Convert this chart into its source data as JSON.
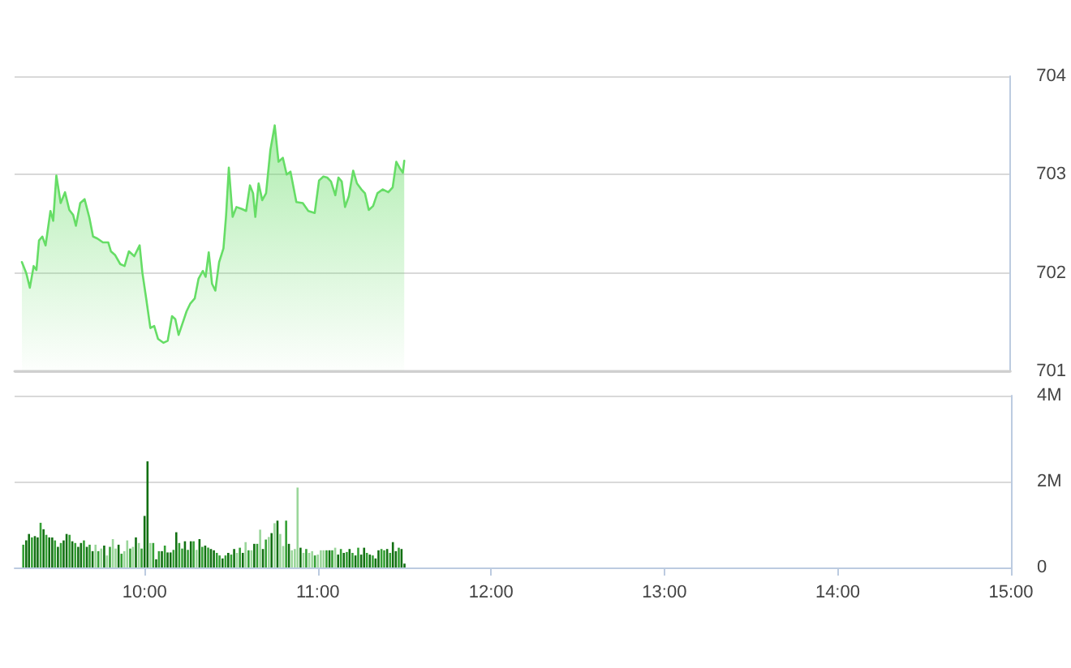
{
  "chart_data": [
    {
      "type": "area",
      "xlim": [
        9.25,
        15
      ],
      "ylim": [
        701,
        704
      ],
      "yticks": [
        701,
        702,
        703,
        704
      ],
      "grid": "y",
      "tick_labels": "y",
      "series": [
        {
          "color": "#66dd66",
          "x": [
            9.292,
            9.317,
            9.338,
            9.36,
            9.376,
            9.391,
            9.41,
            9.429,
            9.457,
            9.473,
            9.491,
            9.516,
            9.541,
            9.566,
            9.588,
            9.604,
            9.629,
            9.654,
            9.682,
            9.703,
            9.728,
            9.76,
            9.791,
            9.806,
            9.831,
            9.86,
            9.885,
            9.91,
            9.941,
            9.972,
            9.988,
            10.009,
            10.034,
            10.056,
            10.078,
            10.109,
            10.134,
            10.159,
            10.178,
            10.197,
            10.222,
            10.243,
            10.265,
            10.29,
            10.312,
            10.337,
            10.353,
            10.371,
            10.39,
            10.409,
            10.431,
            10.456,
            10.471,
            10.487,
            10.509,
            10.531,
            10.562,
            10.587,
            10.609,
            10.627,
            10.64,
            10.659,
            10.68,
            10.702,
            10.727,
            10.752,
            10.774,
            10.799,
            10.821,
            10.843,
            10.877,
            10.914,
            10.946,
            10.983,
            11.008,
            11.033,
            11.055,
            11.077,
            11.102,
            11.12,
            11.139,
            11.158,
            11.18,
            11.205,
            11.227,
            11.252,
            11.273,
            11.295,
            11.32,
            11.345,
            11.376,
            11.408,
            11.433,
            11.454,
            11.476,
            11.492,
            11.5
          ],
          "values": [
            702.11,
            702.0,
            701.85,
            702.07,
            702.03,
            702.33,
            702.37,
            702.28,
            702.63,
            702.53,
            702.99,
            702.71,
            702.82,
            702.64,
            702.59,
            702.48,
            702.71,
            702.75,
            702.56,
            702.37,
            702.35,
            702.31,
            702.31,
            702.22,
            702.18,
            702.09,
            702.07,
            702.22,
            702.17,
            702.28,
            702.0,
            701.75,
            701.44,
            701.46,
            701.33,
            701.29,
            701.31,
            701.56,
            701.53,
            701.37,
            701.5,
            701.61,
            701.69,
            701.74,
            701.94,
            702.02,
            701.96,
            702.21,
            701.89,
            701.82,
            702.11,
            702.25,
            702.58,
            703.07,
            702.57,
            702.67,
            702.65,
            702.63,
            702.89,
            702.81,
            702.57,
            702.91,
            702.74,
            702.81,
            703.25,
            703.5,
            703.13,
            703.17,
            703.0,
            703.03,
            702.72,
            702.71,
            702.63,
            702.61,
            702.94,
            702.98,
            702.97,
            702.93,
            702.79,
            702.97,
            702.93,
            702.67,
            702.78,
            703.04,
            702.91,
            702.85,
            702.81,
            702.64,
            702.68,
            702.81,
            702.85,
            702.82,
            702.87,
            703.13,
            703.06,
            703.02,
            703.14
          ]
        }
      ]
    },
    {
      "type": "bar",
      "xlim": [
        9.25,
        15
      ],
      "xticks": [
        {
          "value": 10,
          "label": "10:00"
        },
        {
          "value": 11,
          "label": "11:00"
        },
        {
          "value": 12,
          "label": "12:00"
        },
        {
          "value": 13,
          "label": "13:00"
        },
        {
          "value": 14,
          "label": "14:00"
        },
        {
          "value": 15,
          "label": "15:00"
        }
      ],
      "ylim": [
        0,
        4
      ],
      "yticks": [
        0,
        {
          "value": 2,
          "label": "2M"
        },
        {
          "value": 4,
          "label": "4M"
        }
      ],
      "grid": "y",
      "x": [
        9.3,
        9.317,
        9.333,
        9.35,
        9.367,
        9.383,
        9.4,
        9.417,
        9.433,
        9.45,
        9.467,
        9.483,
        9.5,
        9.517,
        9.533,
        9.55,
        9.567,
        9.583,
        9.6,
        9.617,
        9.633,
        9.65,
        9.667,
        9.683,
        9.7,
        9.717,
        9.733,
        9.75,
        9.767,
        9.783,
        9.8,
        9.817,
        9.833,
        9.85,
        9.867,
        9.883,
        9.9,
        9.917,
        9.933,
        9.95,
        9.967,
        9.983,
        10,
        10.017,
        10.033,
        10.05,
        10.067,
        10.083,
        10.1,
        10.117,
        10.133,
        10.15,
        10.167,
        10.183,
        10.2,
        10.217,
        10.233,
        10.25,
        10.267,
        10.283,
        10.3,
        10.317,
        10.333,
        10.35,
        10.367,
        10.383,
        10.4,
        10.417,
        10.433,
        10.45,
        10.467,
        10.483,
        10.5,
        10.517,
        10.533,
        10.55,
        10.567,
        10.583,
        10.6,
        10.617,
        10.633,
        10.65,
        10.667,
        10.683,
        10.7,
        10.717,
        10.733,
        10.75,
        10.767,
        10.783,
        10.8,
        10.817,
        10.833,
        10.85,
        10.867,
        10.883,
        10.9,
        10.917,
        10.933,
        10.95,
        10.967,
        10.983,
        11,
        11.017,
        11.033,
        11.05,
        11.067,
        11.083,
        11.1,
        11.117,
        11.133,
        11.15,
        11.167,
        11.183,
        11.2,
        11.217,
        11.233,
        11.25,
        11.267,
        11.283,
        11.3,
        11.317,
        11.333,
        11.35,
        11.367,
        11.383,
        11.4,
        11.417,
        11.433,
        11.45,
        11.467,
        11.483,
        11.5
      ],
      "values": [
        0.53,
        0.63,
        0.78,
        0.7,
        0.73,
        0.7,
        1.04,
        0.89,
        0.76,
        0.7,
        0.7,
        0.63,
        0.48,
        0.57,
        0.63,
        0.78,
        0.76,
        0.61,
        0.57,
        0.48,
        0.57,
        0.63,
        0.48,
        0.53,
        0.38,
        0.53,
        0.38,
        0.44,
        0.51,
        0.28,
        0.48,
        0.66,
        0.44,
        0.53,
        0.32,
        0.38,
        0.63,
        0.44,
        0.48,
        0.7,
        0.57,
        0.44,
        1.2,
        2.47,
        0.57,
        0.57,
        0.19,
        0.38,
        0.38,
        0.51,
        0.35,
        0.35,
        0.41,
        0.82,
        0.57,
        0.44,
        0.61,
        0.41,
        0.61,
        0.61,
        0.41,
        0.66,
        0.48,
        0.51,
        0.46,
        0.43,
        0.4,
        0.34,
        0.28,
        0.21,
        0.28,
        0.34,
        0.3,
        0.43,
        0.34,
        0.46,
        0.34,
        0.59,
        0.4,
        0.4,
        0.55,
        0.55,
        0.88,
        0.43,
        0.65,
        0.71,
        0.8,
        1.03,
        1.09,
        0.78,
        0.5,
        1.09,
        0.55,
        0.4,
        0.43,
        1.86,
        0.46,
        0.34,
        0.43,
        0.34,
        0.38,
        0.28,
        0.3,
        0.4,
        0.4,
        0.4,
        0.4,
        0.4,
        0.46,
        0.3,
        0.43,
        0.34,
        0.36,
        0.43,
        0.34,
        0.28,
        0.46,
        0.3,
        0.46,
        0.34,
        0.3,
        0.28,
        0.21,
        0.4,
        0.43,
        0.4,
        0.43,
        0.34,
        0.59,
        0.38,
        0.46,
        0.43,
        0.09
      ],
      "colors": [
        "#35a035",
        "#127012",
        "#127012",
        "#35a035",
        "#127012",
        "#127012",
        "#35a035",
        "#127012",
        "#35a035",
        "#127012",
        "#127012",
        "#35a035",
        "#127012",
        "#35a035",
        "#127012",
        "#127012",
        "#35a035",
        "#127012",
        "#35a035",
        "#127012",
        "#127012",
        "#35a035",
        "#127012",
        "#35a035",
        "#127012",
        "#9ad69a",
        "#35a035",
        "#9ad69a",
        "#127012",
        "#9ad69a",
        "#35a035",
        "#9ad69a",
        "#9ad69a",
        "#127012",
        "#35a035",
        "#9ad69a",
        "#9ad69a",
        "#35a035",
        "#9ad69a",
        "#127012",
        "#9ad69a",
        "#35a035",
        "#127012",
        "#127012",
        "#9ad69a",
        "#35a035",
        "#127012",
        "#35a035",
        "#127012",
        "#35a035",
        "#127012",
        "#127012",
        "#35a035",
        "#127012",
        "#35a035",
        "#35a035",
        "#127012",
        "#35a035",
        "#127012",
        "#35a035",
        "#9ad69a",
        "#127012",
        "#35a035",
        "#127012",
        "#35a035",
        "#127012",
        "#127012",
        "#35a035",
        "#35a035",
        "#127012",
        "#35a035",
        "#127012",
        "#35a035",
        "#127012",
        "#9ad69a",
        "#35a035",
        "#127012",
        "#9ad69a",
        "#35a035",
        "#9ad69a",
        "#127012",
        "#35a035",
        "#9ad69a",
        "#127012",
        "#35a035",
        "#9ad69a",
        "#127012",
        "#9ad69a",
        "#127012",
        "#9ad69a",
        "#9ad69a",
        "#35a035",
        "#127012",
        "#9ad69a",
        "#9ad69a",
        "#9ad69a",
        "#127012",
        "#9ad69a",
        "#35a035",
        "#9ad69a",
        "#9ad69a",
        "#35a035",
        "#9ad69a",
        "#9ad69a",
        "#9ad69a",
        "#35a035",
        "#127012",
        "#35a035",
        "#9ad69a",
        "#127012",
        "#35a035",
        "#127012",
        "#35a035",
        "#127012",
        "#35a035",
        "#127012",
        "#35a035",
        "#127012",
        "#127012",
        "#35a035",
        "#127012",
        "#35a035",
        "#127012",
        "#127012",
        "#35a035",
        "#35a035",
        "#127012",
        "#35a035",
        "#127012",
        "#127012",
        "#35a035",
        "#127012",
        "#127012"
      ]
    }
  ]
}
